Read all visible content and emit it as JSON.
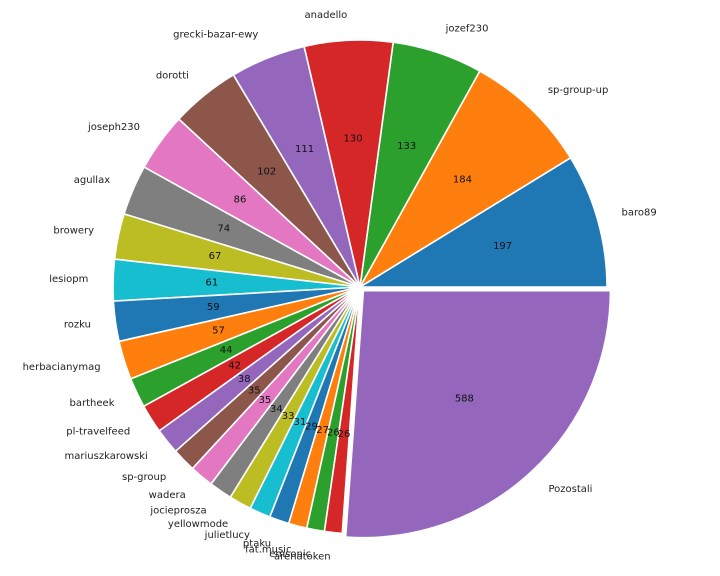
{
  "chart_data": {
    "type": "pie",
    "title": "",
    "start_angle_deg": 0,
    "direction": "counterclockwise",
    "labels": [
      "baro89",
      "sp-group-up",
      "jozef230",
      "anadello",
      "grecki-bazar-ewy",
      "dorotti",
      "joseph230",
      "agullax",
      "browery",
      "lesiopm",
      "rozku",
      "herbacianymag",
      "bartheek",
      "pl-travelfeed",
      "mariuszkarowski",
      "sp-group",
      "wadera",
      "jocieprosza",
      "yellowmode",
      "julietlucy",
      "ptaku",
      "fat.music",
      "emsonic",
      "arenatoken",
      "Pozostali"
    ],
    "values": [
      197,
      184,
      133,
      130,
      111,
      102,
      86,
      74,
      67,
      61,
      59,
      57,
      44,
      42,
      38,
      35,
      35,
      34,
      33,
      31,
      29,
      27,
      26,
      26,
      588
    ],
    "colors": [
      "#1f77b4",
      "#ff7f0e",
      "#2ca02c",
      "#d62728",
      "#9467bd",
      "#8c564b",
      "#e377c2",
      "#7f7f7f",
      "#bcbd22",
      "#17becf",
      "#1f77b4",
      "#ff7f0e",
      "#2ca02c",
      "#d62728",
      "#9467bd",
      "#8c564b",
      "#e377c2",
      "#7f7f7f",
      "#bcbd22",
      "#17becf",
      "#1f77b4",
      "#ff7f0e",
      "#2ca02c",
      "#d62728",
      "#9467bd"
    ],
    "explode_last": true
  }
}
